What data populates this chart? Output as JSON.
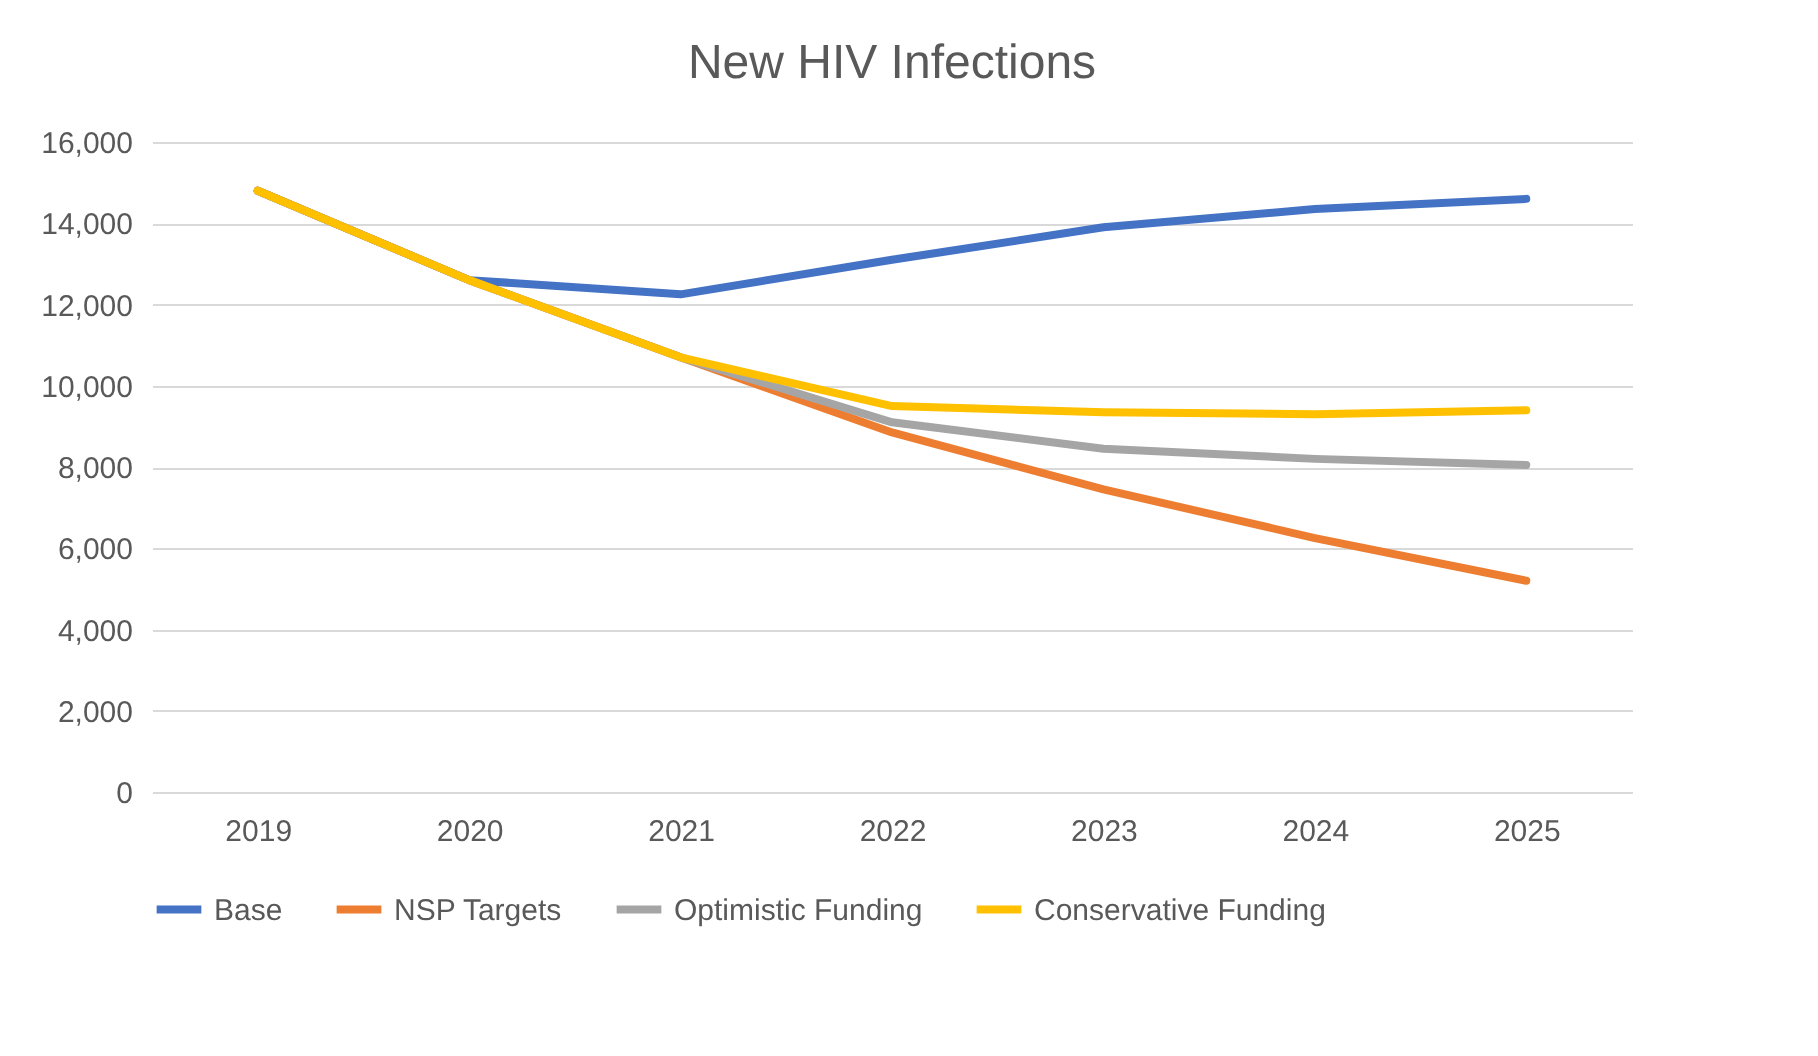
{
  "chart_data": {
    "type": "line",
    "title": "New HIV Infections",
    "categories": [
      "2019",
      "2020",
      "2021",
      "2022",
      "2023",
      "2024",
      "2025"
    ],
    "series": [
      {
        "name": "Base",
        "color": "#4472c4",
        "values": [
          14800,
          12600,
          12250,
          13100,
          13900,
          14350,
          14600
        ]
      },
      {
        "name": "NSP Targets",
        "color": "#ed7d31",
        "values": [
          14800,
          12600,
          10700,
          8850,
          7450,
          6250,
          5200
        ]
      },
      {
        "name": "Optimistic Funding",
        "color": "#a5a5a5",
        "values": [
          14800,
          12600,
          10700,
          9100,
          8450,
          8200,
          8050
        ]
      },
      {
        "name": "Conservative Funding",
        "color": "#ffc000",
        "values": [
          14800,
          12600,
          10700,
          9500,
          9350,
          9300,
          9400
        ]
      }
    ],
    "ylim": [
      0,
      16000
    ],
    "yticks": [
      {
        "value": 0,
        "label": "0"
      },
      {
        "value": 2000,
        "label": "2,000"
      },
      {
        "value": 4000,
        "label": "4,000"
      },
      {
        "value": 6000,
        "label": "6,000"
      },
      {
        "value": 8000,
        "label": "8,000"
      },
      {
        "value": 10000,
        "label": "10,000"
      },
      {
        "value": 12000,
        "label": "12,000"
      },
      {
        "value": 14000,
        "label": "14,000"
      },
      {
        "value": 16000,
        "label": "16,000"
      }
    ],
    "grid": "y",
    "legend": "bottom",
    "marker": "none",
    "line_style": "solid"
  }
}
